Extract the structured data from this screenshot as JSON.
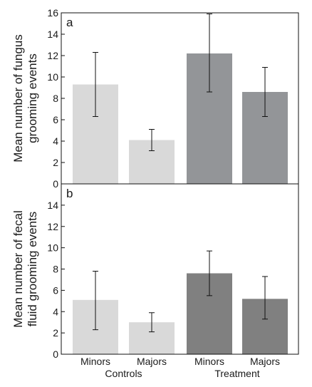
{
  "chart_data": [
    {
      "type": "bar",
      "panel": "a",
      "ylabel_lines": [
        "Mean number of fungus",
        "grooming events"
      ],
      "ylim": [
        0,
        16
      ],
      "yticks": [
        0,
        2,
        4,
        6,
        8,
        10,
        12,
        14,
        16
      ],
      "categories": [
        "Minors",
        "Majors",
        "Minors",
        "Majors"
      ],
      "groups": [
        "Controls",
        "Treatment"
      ],
      "values": [
        9.3,
        4.1,
        12.2,
        8.6
      ],
      "errors": [
        [
          6.3,
          12.3
        ],
        [
          3.1,
          5.1
        ],
        [
          8.6,
          15.9
        ],
        [
          6.3,
          10.9
        ]
      ],
      "bar_colors": [
        "#d9d9d9",
        "#d9d9d9",
        "#939598",
        "#939598"
      ]
    },
    {
      "type": "bar",
      "panel": "b",
      "ylabel_lines": [
        "Mean number of fecal",
        "fluid grooming events"
      ],
      "ylim": [
        0,
        16
      ],
      "yticks": [
        0,
        2,
        4,
        6,
        8,
        10,
        12,
        14
      ],
      "categories": [
        "Minors",
        "Majors",
        "Minors",
        "Majors"
      ],
      "groups": [
        "Controls",
        "Treatment"
      ],
      "values": [
        5.1,
        3.0,
        7.6,
        5.2
      ],
      "errors": [
        [
          2.3,
          7.8
        ],
        [
          2.1,
          3.9
        ],
        [
          5.5,
          9.7
        ],
        [
          3.3,
          7.3
        ]
      ],
      "bar_colors": [
        "#d9d9d9",
        "#d9d9d9",
        "#808080",
        "#808080"
      ]
    }
  ]
}
